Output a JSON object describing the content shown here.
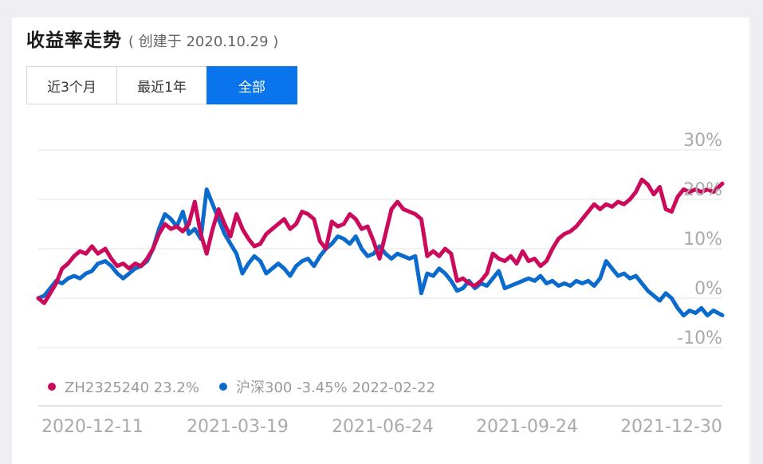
{
  "header": {
    "title": "收益率走势",
    "subtitle": "( 创建于 2020.10.29 )"
  },
  "tabs": [
    {
      "label": "近3个月",
      "active": false
    },
    {
      "label": "最近1年",
      "active": false
    },
    {
      "label": "全部",
      "active": true
    }
  ],
  "colors": {
    "series_portfolio": "#cc0a5b",
    "series_index": "#0a6bcc",
    "active_tab": "#0a74ec",
    "grid": "#e6e6e6",
    "axis_text": "#aaaaaa"
  },
  "chart_data": {
    "type": "line",
    "ylim": [
      -10,
      30
    ],
    "yticks": [
      "30%",
      "20%",
      "10%",
      "0%",
      "-10%"
    ],
    "ytick_values": [
      30,
      20,
      10,
      0,
      -10
    ],
    "xlim": [
      "2020-11-20",
      "2022-02-22"
    ],
    "xtick_labels": [
      "2020-12-11",
      "2021-03-19",
      "2021-06-24",
      "2021-09-24",
      "2021-12-30"
    ],
    "grid": true,
    "legend_position": "bottom-left",
    "legend_date": "2022-02-22",
    "series": [
      {
        "name": "ZH2325240",
        "legend_value": "23.2%",
        "color": "#cc0a5b",
        "points": [
          [
            "2020-11-20",
            0
          ],
          [
            "2020-11-24",
            -1
          ],
          [
            "2020-11-28",
            1
          ],
          [
            "2020-12-02",
            3
          ],
          [
            "2020-12-06",
            6
          ],
          [
            "2020-12-10",
            7
          ],
          [
            "2020-12-14",
            8.5
          ],
          [
            "2020-12-18",
            9.5
          ],
          [
            "2020-12-22",
            9
          ],
          [
            "2020-12-26",
            10.5
          ],
          [
            "2020-12-30",
            9
          ],
          [
            "2021-01-04",
            10
          ],
          [
            "2021-01-08",
            8
          ],
          [
            "2021-01-12",
            6.5
          ],
          [
            "2021-01-16",
            7
          ],
          [
            "2021-01-20",
            6
          ],
          [
            "2021-01-24",
            7
          ],
          [
            "2021-01-28",
            6.5
          ],
          [
            "2021-02-01",
            8
          ],
          [
            "2021-02-05",
            10
          ],
          [
            "2021-02-09",
            13
          ],
          [
            "2021-02-13",
            15
          ],
          [
            "2021-02-17",
            14
          ],
          [
            "2021-02-21",
            14.5
          ],
          [
            "2021-02-25",
            13.5
          ],
          [
            "2021-03-01",
            15
          ],
          [
            "2021-03-05",
            19.5
          ],
          [
            "2021-03-09",
            13
          ],
          [
            "2021-03-13",
            9
          ],
          [
            "2021-03-17",
            14
          ],
          [
            "2021-03-21",
            18
          ],
          [
            "2021-03-25",
            15
          ],
          [
            "2021-03-29",
            12.5
          ],
          [
            "2021-04-02",
            17
          ],
          [
            "2021-04-06",
            14
          ],
          [
            "2021-04-10",
            12
          ],
          [
            "2021-04-14",
            10.5
          ],
          [
            "2021-04-18",
            11
          ],
          [
            "2021-04-22",
            13
          ],
          [
            "2021-04-26",
            14
          ],
          [
            "2021-04-30",
            15
          ],
          [
            "2021-05-04",
            16
          ],
          [
            "2021-05-08",
            14
          ],
          [
            "2021-05-12",
            15
          ],
          [
            "2021-05-16",
            17.5
          ],
          [
            "2021-05-20",
            17
          ],
          [
            "2021-05-24",
            16
          ],
          [
            "2021-05-28",
            11.5
          ],
          [
            "2021-06-01",
            10
          ],
          [
            "2021-06-05",
            15.5
          ],
          [
            "2021-06-09",
            14.5
          ],
          [
            "2021-06-13",
            15
          ],
          [
            "2021-06-17",
            17
          ],
          [
            "2021-06-21",
            16
          ],
          [
            "2021-06-25",
            14
          ],
          [
            "2021-06-29",
            14.5
          ],
          [
            "2021-07-03",
            11.5
          ],
          [
            "2021-07-07",
            8
          ],
          [
            "2021-07-11",
            13
          ],
          [
            "2021-07-15",
            18
          ],
          [
            "2021-07-19",
            19.5
          ],
          [
            "2021-07-23",
            18
          ],
          [
            "2021-07-27",
            17.5
          ],
          [
            "2021-07-31",
            17
          ],
          [
            "2021-08-04",
            16
          ],
          [
            "2021-08-08",
            8.5
          ],
          [
            "2021-08-12",
            9.5
          ],
          [
            "2021-08-16",
            8.5
          ],
          [
            "2021-08-20",
            10
          ],
          [
            "2021-08-24",
            9
          ],
          [
            "2021-08-28",
            3.5
          ],
          [
            "2021-09-01",
            4
          ],
          [
            "2021-09-05",
            3
          ],
          [
            "2021-09-09",
            2.5
          ],
          [
            "2021-09-13",
            3.5
          ],
          [
            "2021-09-17",
            5
          ],
          [
            "2021-09-21",
            9
          ],
          [
            "2021-09-25",
            8
          ],
          [
            "2021-09-29",
            7.5
          ],
          [
            "2021-10-03",
            8.5
          ],
          [
            "2021-10-07",
            7
          ],
          [
            "2021-10-11",
            9.5
          ],
          [
            "2021-10-15",
            7.5
          ],
          [
            "2021-10-19",
            8
          ],
          [
            "2021-10-23",
            6.5
          ],
          [
            "2021-10-27",
            7.5
          ],
          [
            "2021-10-31",
            10
          ],
          [
            "2021-11-04",
            12
          ],
          [
            "2021-11-08",
            13
          ],
          [
            "2021-11-12",
            13.5
          ],
          [
            "2021-11-16",
            14.5
          ],
          [
            "2021-11-20",
            16
          ],
          [
            "2021-11-24",
            17.5
          ],
          [
            "2021-11-28",
            19
          ],
          [
            "2021-12-02",
            18
          ],
          [
            "2021-12-06",
            19
          ],
          [
            "2021-12-10",
            18.5
          ],
          [
            "2021-12-14",
            19.5
          ],
          [
            "2021-12-18",
            19
          ],
          [
            "2021-12-22",
            20
          ],
          [
            "2021-12-26",
            21.5
          ],
          [
            "2021-12-30",
            24
          ],
          [
            "2022-01-03",
            23
          ],
          [
            "2022-01-07",
            21
          ],
          [
            "2022-01-11",
            22.5
          ],
          [
            "2022-01-15",
            18
          ],
          [
            "2022-01-19",
            17.5
          ],
          [
            "2022-01-23",
            20.5
          ],
          [
            "2022-01-27",
            22
          ],
          [
            "2022-01-31",
            21.5
          ],
          [
            "2022-02-04",
            22
          ],
          [
            "2022-02-08",
            21.5
          ],
          [
            "2022-02-12",
            22
          ],
          [
            "2022-02-16",
            21.5
          ],
          [
            "2022-02-22",
            23.2
          ]
        ]
      },
      {
        "name": "沪深300",
        "legend_value": "-3.45%",
        "color": "#0a6bcc",
        "points": [
          [
            "2020-11-20",
            0
          ],
          [
            "2020-11-24",
            0.5
          ],
          [
            "2020-11-28",
            2
          ],
          [
            "2020-12-02",
            3.5
          ],
          [
            "2020-12-06",
            3
          ],
          [
            "2020-12-10",
            4
          ],
          [
            "2020-12-14",
            4.5
          ],
          [
            "2020-12-18",
            4
          ],
          [
            "2020-12-22",
            5
          ],
          [
            "2020-12-26",
            5.5
          ],
          [
            "2020-12-30",
            7
          ],
          [
            "2021-01-04",
            7.5
          ],
          [
            "2021-01-08",
            6.5
          ],
          [
            "2021-01-12",
            5
          ],
          [
            "2021-01-16",
            4
          ],
          [
            "2021-01-20",
            5
          ],
          [
            "2021-01-24",
            6
          ],
          [
            "2021-01-28",
            6.5
          ],
          [
            "2021-02-01",
            7.5
          ],
          [
            "2021-02-05",
            10
          ],
          [
            "2021-02-09",
            14
          ],
          [
            "2021-02-13",
            17
          ],
          [
            "2021-02-17",
            16
          ],
          [
            "2021-02-21",
            14.5
          ],
          [
            "2021-02-25",
            17.5
          ],
          [
            "2021-03-01",
            13
          ],
          [
            "2021-03-05",
            14
          ],
          [
            "2021-03-09",
            12
          ],
          [
            "2021-03-13",
            22
          ],
          [
            "2021-03-17",
            19
          ],
          [
            "2021-03-21",
            16
          ],
          [
            "2021-03-25",
            13
          ],
          [
            "2021-03-29",
            11
          ],
          [
            "2021-04-02",
            9
          ],
          [
            "2021-04-06",
            5
          ],
          [
            "2021-04-10",
            7
          ],
          [
            "2021-04-14",
            8.5
          ],
          [
            "2021-04-18",
            7.5
          ],
          [
            "2021-04-22",
            5
          ],
          [
            "2021-04-26",
            6
          ],
          [
            "2021-04-30",
            7
          ],
          [
            "2021-05-04",
            6
          ],
          [
            "2021-05-08",
            4.5
          ],
          [
            "2021-05-12",
            6.5
          ],
          [
            "2021-05-16",
            7.5
          ],
          [
            "2021-05-20",
            8
          ],
          [
            "2021-05-24",
            6.5
          ],
          [
            "2021-05-28",
            8.5
          ],
          [
            "2021-06-01",
            10
          ],
          [
            "2021-06-05",
            11
          ],
          [
            "2021-06-09",
            12.5
          ],
          [
            "2021-06-13",
            12
          ],
          [
            "2021-06-17",
            11
          ],
          [
            "2021-06-21",
            12.5
          ],
          [
            "2021-06-25",
            10
          ],
          [
            "2021-06-29",
            8.5
          ],
          [
            "2021-07-03",
            9
          ],
          [
            "2021-07-07",
            10.5
          ],
          [
            "2021-07-11",
            9
          ],
          [
            "2021-07-15",
            8
          ],
          [
            "2021-07-19",
            9
          ],
          [
            "2021-07-23",
            8.5
          ],
          [
            "2021-07-27",
            8
          ],
          [
            "2021-07-31",
            8.5
          ],
          [
            "2021-08-04",
            1
          ],
          [
            "2021-08-08",
            5
          ],
          [
            "2021-08-12",
            4.5
          ],
          [
            "2021-08-16",
            6
          ],
          [
            "2021-08-20",
            5
          ],
          [
            "2021-08-24",
            3.5
          ],
          [
            "2021-08-28",
            1.5
          ],
          [
            "2021-09-01",
            2
          ],
          [
            "2021-09-05",
            3.5
          ],
          [
            "2021-09-09",
            2
          ],
          [
            "2021-09-13",
            3
          ],
          [
            "2021-09-17",
            2.5
          ],
          [
            "2021-09-21",
            4
          ],
          [
            "2021-09-25",
            5.5
          ],
          [
            "2021-09-29",
            2
          ],
          [
            "2021-10-03",
            2.5
          ],
          [
            "2021-10-07",
            3
          ],
          [
            "2021-10-11",
            3.5
          ],
          [
            "2021-10-15",
            4
          ],
          [
            "2021-10-19",
            3.5
          ],
          [
            "2021-10-23",
            4.5
          ],
          [
            "2021-10-27",
            3
          ],
          [
            "2021-10-31",
            3.5
          ],
          [
            "2021-11-04",
            2.5
          ],
          [
            "2021-11-08",
            3
          ],
          [
            "2021-11-12",
            2.5
          ],
          [
            "2021-11-16",
            3.5
          ],
          [
            "2021-11-20",
            3
          ],
          [
            "2021-11-24",
            3.5
          ],
          [
            "2021-11-28",
            2.5
          ],
          [
            "2021-12-02",
            4
          ],
          [
            "2021-12-06",
            7.5
          ],
          [
            "2021-12-10",
            6
          ],
          [
            "2021-12-14",
            4.5
          ],
          [
            "2021-12-18",
            5
          ],
          [
            "2021-12-22",
            4
          ],
          [
            "2021-12-26",
            4.5
          ],
          [
            "2021-12-30",
            3
          ],
          [
            "2022-01-03",
            1.5
          ],
          [
            "2022-01-07",
            0.5
          ],
          [
            "2022-01-11",
            -0.5
          ],
          [
            "2022-01-15",
            1
          ],
          [
            "2022-01-19",
            0
          ],
          [
            "2022-01-23",
            -2
          ],
          [
            "2022-01-27",
            -3.5
          ],
          [
            "2022-01-31",
            -2.5
          ],
          [
            "2022-02-04",
            -3
          ],
          [
            "2022-02-08",
            -2
          ],
          [
            "2022-02-12",
            -3.5
          ],
          [
            "2022-02-16",
            -2.5
          ],
          [
            "2022-02-22",
            -3.45
          ]
        ]
      }
    ]
  }
}
